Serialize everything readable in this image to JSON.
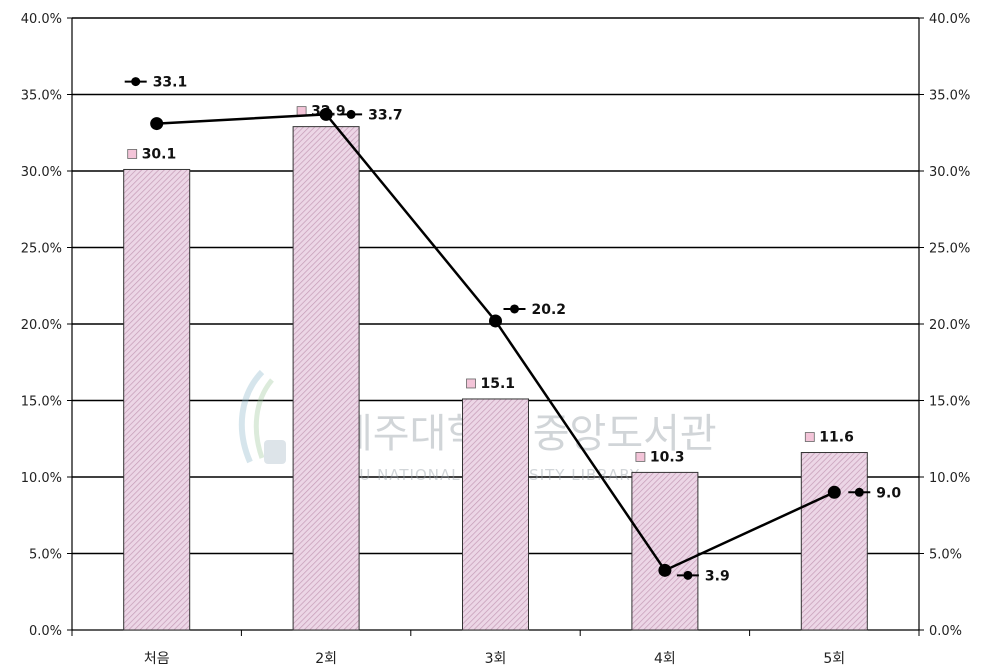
{
  "chart_data": {
    "type": "bar+line",
    "categories": [
      "처음",
      "2회",
      "3회",
      "4회",
      "5회"
    ],
    "y_ticks": [
      "0.0%",
      "5.0%",
      "10.0%",
      "15.0%",
      "20.0%",
      "25.0%",
      "30.0%",
      "35.0%",
      "40.0%"
    ],
    "ylim": [
      0,
      40
    ],
    "grid": true,
    "series": [
      {
        "type": "bar",
        "values": [
          30.1,
          32.9,
          15.1,
          10.3,
          11.6
        ],
        "labels": [
          "30.1",
          "32.9",
          "15.1",
          "10.3",
          "11.6"
        ],
        "color": "#e8cfe0"
      },
      {
        "type": "line",
        "values": [
          33.1,
          33.7,
          20.2,
          3.9,
          9.0
        ],
        "labels": [
          "33.1",
          "33.7",
          "20.2",
          "3.9",
          "9.0"
        ],
        "color": "#000000"
      }
    ]
  },
  "watermark": {
    "korean": "제주대학교 중앙도서관",
    "english": "JEJU NATIONAL UNIVERSITY LIBRARY"
  }
}
